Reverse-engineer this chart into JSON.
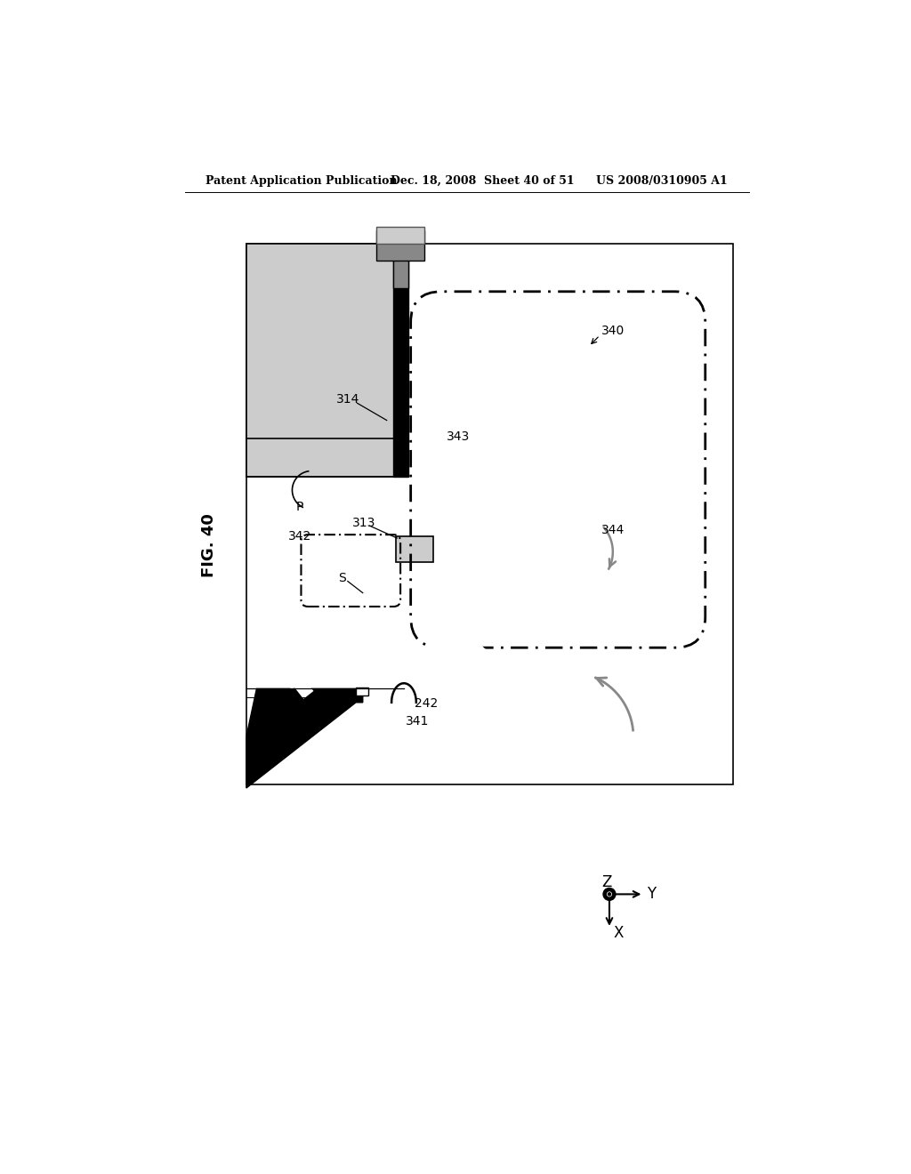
{
  "header_left": "Patent Application Publication",
  "header_center": "Dec. 18, 2008  Sheet 40 of 51",
  "header_right": "US 2008/0310905 A1",
  "background": "#ffffff",
  "fig_label": "FIG. 40"
}
